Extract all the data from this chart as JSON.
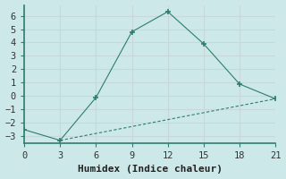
{
  "xlabel": "Humidex (Indice chaleur)",
  "line1_x": [
    0,
    3,
    6,
    9,
    12,
    15,
    18,
    21
  ],
  "line1_y": [
    -2.5,
    -3.3,
    -0.1,
    4.8,
    6.3,
    3.9,
    0.9,
    -0.2
  ],
  "line2_x": [
    3,
    21
  ],
  "line2_y": [
    -3.3,
    -0.2
  ],
  "color": "#2e7d6e",
  "bg_color": "#cce8e8",
  "grid_color": "#c8d8d8",
  "spine_color": "#2e7d6e",
  "xlim": [
    0,
    21
  ],
  "ylim": [
    -3.5,
    6.8
  ],
  "xticks": [
    0,
    3,
    6,
    9,
    12,
    15,
    18,
    21
  ],
  "yticks": [
    -3,
    -2,
    -1,
    0,
    1,
    2,
    3,
    4,
    5,
    6
  ],
  "font_family": "monospace",
  "xlabel_fontsize": 8,
  "tick_fontsize": 7.5
}
